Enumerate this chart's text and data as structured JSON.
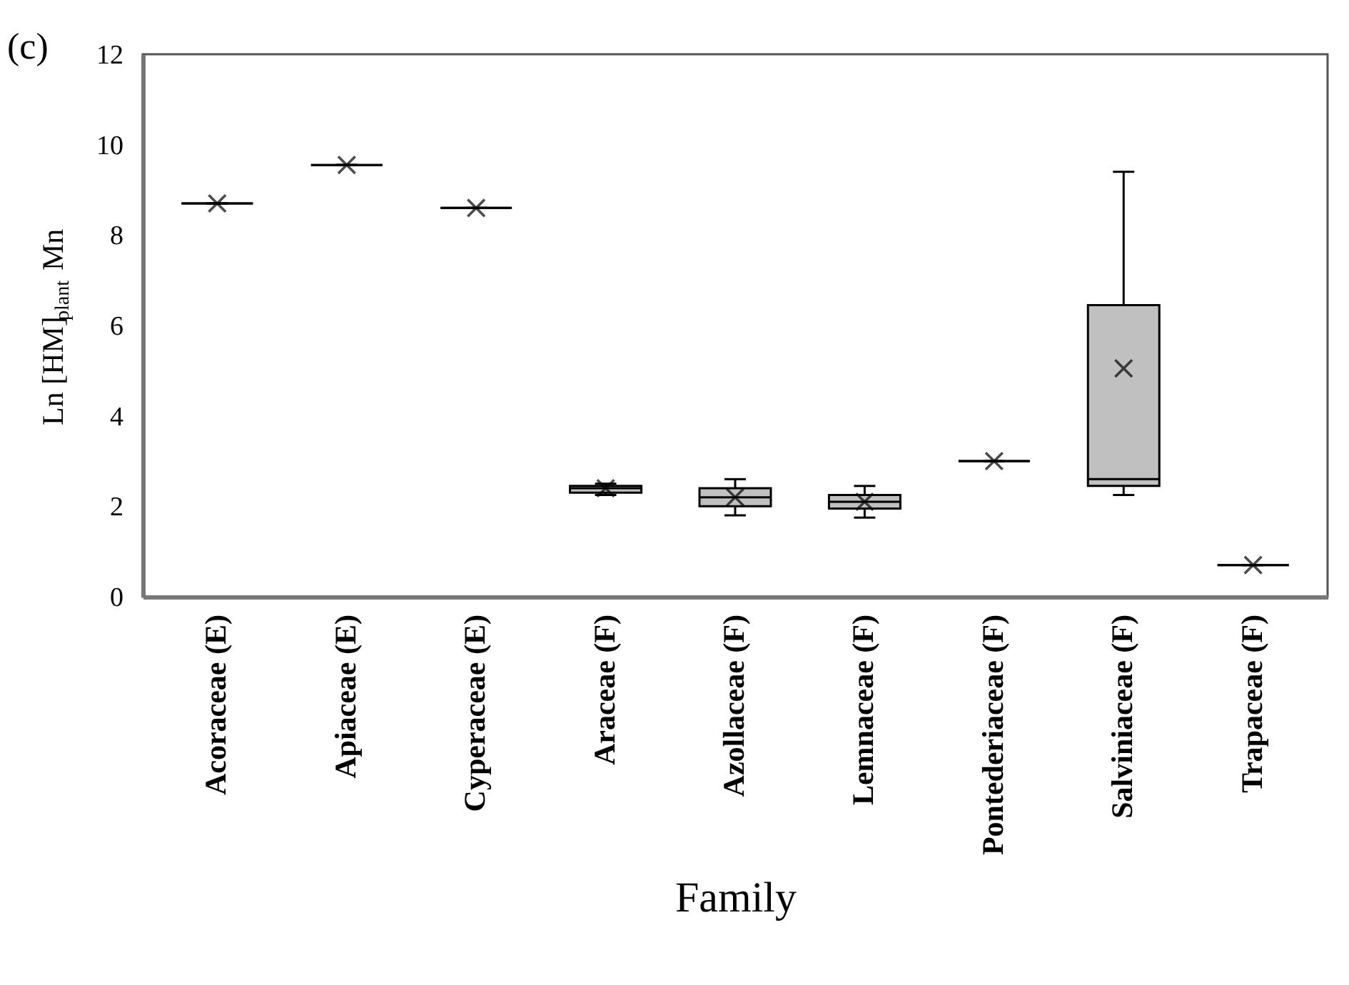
{
  "chart_data": {
    "type": "box",
    "xlabel": "Family",
    "ylabel": "Ln [HM]$_{plant}$ Mn",
    "annotations": [
      "(c)"
    ],
    "categories": [
      "Acoraceae  (E)",
      "Apiaceae  (E)",
      "Cyperaceae  (E)",
      "Araceae  (F)",
      "Azollaceae  (F)",
      "Lemnaceae  (F)",
      "Pontederiaceae  (F)",
      "Salviniaceae  (F)",
      "Trapaceae  (F)"
    ],
    "boxes": [
      {
        "low": 8.7,
        "q1": 8.7,
        "median": 8.7,
        "q3": 8.7,
        "high": 8.7,
        "mean": 8.7
      },
      {
        "low": 9.55,
        "q1": 9.55,
        "median": 9.55,
        "q3": 9.55,
        "high": 9.55,
        "mean": 9.55
      },
      {
        "low": 8.6,
        "q1": 8.6,
        "median": 8.6,
        "q3": 8.6,
        "high": 8.6,
        "mean": 8.6
      },
      {
        "low": 2.25,
        "q1": 2.3,
        "median": 2.4,
        "q3": 2.45,
        "high": 2.5,
        "mean": 2.4
      },
      {
        "low": 1.8,
        "q1": 2.0,
        "median": 2.2,
        "q3": 2.4,
        "high": 2.6,
        "mean": 2.2
      },
      {
        "low": 1.75,
        "q1": 1.95,
        "median": 2.1,
        "q3": 2.25,
        "high": 2.45,
        "mean": 2.1
      },
      {
        "low": 3.0,
        "q1": 3.0,
        "median": 3.0,
        "q3": 3.0,
        "high": 3.0,
        "mean": 3.0
      },
      {
        "low": 2.25,
        "q1": 2.45,
        "median": 2.6,
        "q3": 6.45,
        "high": 9.4,
        "mean": 5.05
      },
      {
        "low": 0.7,
        "q1": 0.7,
        "median": 0.7,
        "q3": 0.7,
        "high": 0.7,
        "mean": 0.7
      }
    ],
    "colors": [
      "#000000",
      "#000000",
      "#000000",
      "#c0c0c0",
      "#c0c0c0",
      "#c0c0c0",
      "#000000",
      "#c0c0c0",
      "#000000"
    ],
    "marker": "cross",
    "ylim": [
      0,
      12
    ],
    "yticks": [
      0,
      2,
      4,
      6,
      8,
      10,
      12
    ],
    "grid": false
  }
}
